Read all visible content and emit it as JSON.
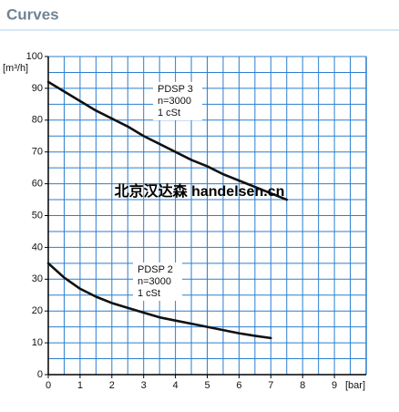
{
  "chart_data": {
    "type": "line",
    "title": "Curves",
    "x_label": "[bar]",
    "y_label": "[m³/h]",
    "watermark": "北京汉达森 handelsen.cn",
    "x": [
      0,
      0.5,
      1,
      1.5,
      2,
      2.5,
      3,
      3.5,
      4,
      4.5,
      5,
      5.5,
      6,
      6.5,
      7,
      7.5
    ],
    "series": [
      {
        "name": "PDSP 3",
        "note": [
          "n=3000",
          "1 cSt"
        ],
        "color": "#111111",
        "values": [
          92,
          89,
          86,
          83,
          80.5,
          78,
          75,
          72.5,
          70,
          67.5,
          65.5,
          63,
          61,
          59,
          57,
          55
        ]
      },
      {
        "name": "PDSP 2",
        "note": [
          "n=3000",
          "1 cSt"
        ],
        "color": "#111111",
        "values": [
          35,
          30.5,
          27,
          24.5,
          22.5,
          21,
          19.5,
          18,
          17,
          16,
          15,
          14,
          13,
          12.2,
          11.5,
          null
        ]
      }
    ],
    "xlim": [
      0,
      10
    ],
    "xticks": [
      0,
      1,
      2,
      3,
      4,
      5,
      6,
      7,
      8,
      9
    ],
    "ylim": [
      0,
      100
    ],
    "yticks": [
      0,
      10,
      20,
      30,
      40,
      50,
      60,
      70,
      80,
      90,
      100
    ],
    "grid": true,
    "grid_color": "#2a7fd0"
  }
}
